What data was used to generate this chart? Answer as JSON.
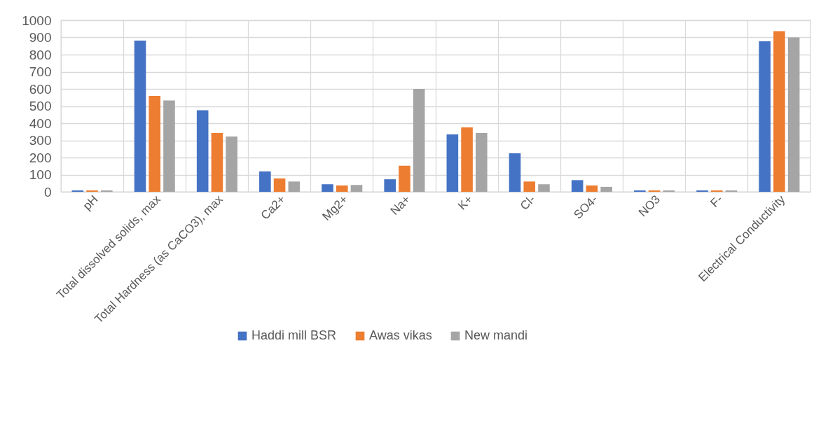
{
  "chart_data": {
    "type": "bar",
    "categories": [
      "pH",
      "Total dissolved solids, max",
      "Total Hardness (as CaCO3), max",
      "Ca2+",
      "Mg2+",
      "Na+",
      "K+",
      "Cl-",
      "SO4-",
      "NO3",
      "F-",
      "Electrical Conductivity"
    ],
    "series": [
      {
        "name": "Haddi mill BSR",
        "color": "#4472c4",
        "values": [
          8,
          882,
          476,
          119,
          44,
          73,
          335,
          224,
          68,
          8,
          8,
          878
        ]
      },
      {
        "name": "Awas vikas",
        "color": "#ed7d31",
        "values": [
          8,
          559,
          343,
          78,
          37,
          152,
          376,
          60,
          37,
          8,
          8,
          937
        ]
      },
      {
        "name": "New mandi",
        "color": "#a5a5a5",
        "values": [
          8,
          533,
          322,
          60,
          40,
          600,
          343,
          44,
          29,
          8,
          8,
          900
        ]
      }
    ],
    "ylim": [
      0,
      1000
    ],
    "yticks": [
      0,
      100,
      200,
      300,
      400,
      500,
      600,
      700,
      800,
      900,
      1000
    ],
    "grid": true,
    "legend": "bottom"
  }
}
